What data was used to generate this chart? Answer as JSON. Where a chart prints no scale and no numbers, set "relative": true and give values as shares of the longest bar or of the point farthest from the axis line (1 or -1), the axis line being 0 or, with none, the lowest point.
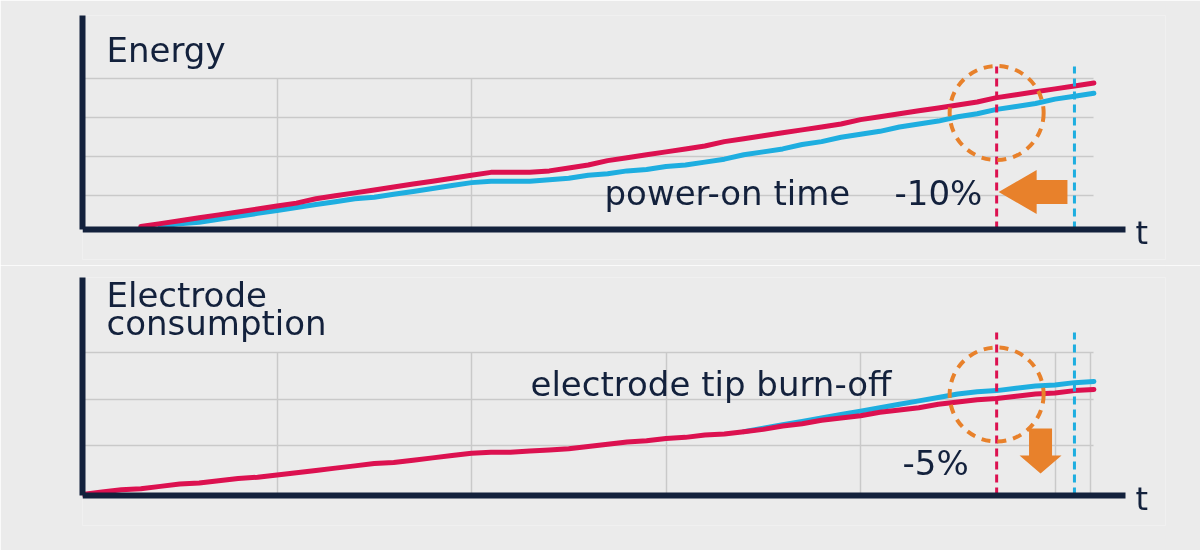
{
  "chart_data": [
    {
      "type": "line",
      "relative": true,
      "ylabel": "Energy",
      "xlabel": "t",
      "grid": true,
      "categories": [
        null,
        null,
        null,
        null,
        null,
        null,
        null,
        null,
        null,
        null,
        null,
        null,
        null,
        null,
        null,
        null,
        null,
        null,
        null,
        null,
        null,
        null,
        null,
        null,
        null,
        null,
        null,
        null,
        null,
        null,
        null,
        null,
        null,
        null,
        null,
        null,
        null,
        null,
        null,
        null,
        null,
        null,
        null,
        null,
        null,
        null,
        null,
        null,
        null,
        null,
        null,
        null,
        null
      ],
      "series": [
        {
          "color": "#1eaee0",
          "values": [
            null,
            null,
            null,
            null,
            0.02,
            0.04,
            0.05,
            0.07,
            0.09,
            0.11,
            0.13,
            0.15,
            0.17,
            0.19,
            0.21,
            0.22,
            0.24,
            0.26,
            0.28,
            0.3,
            0.32,
            0.33,
            0.33,
            0.33,
            0.34,
            0.35,
            0.37,
            0.38,
            0.4,
            0.41,
            0.43,
            0.44,
            0.46,
            0.48,
            0.51,
            0.53,
            0.55,
            0.58,
            0.6,
            0.63,
            0.65,
            0.67,
            0.7,
            0.72,
            0.74,
            0.77,
            0.79,
            0.82,
            0.84,
            0.86,
            0.89,
            0.91,
            0.93
          ]
        },
        {
          "color": "#dc1150",
          "values": [
            null,
            null,
            null,
            0.02,
            0.04,
            0.06,
            0.08,
            0.1,
            0.12,
            0.14,
            0.16,
            0.18,
            0.21,
            0.23,
            0.25,
            0.27,
            0.29,
            0.31,
            0.33,
            0.35,
            0.37,
            0.39,
            0.39,
            0.39,
            0.4,
            0.42,
            0.44,
            0.47,
            0.49,
            0.51,
            0.53,
            0.55,
            0.57,
            0.6,
            0.62,
            0.64,
            0.66,
            0.68,
            0.7,
            0.72,
            0.75,
            0.77,
            0.79,
            0.81,
            0.83,
            0.85,
            0.87,
            0.9,
            0.92,
            0.94,
            0.96,
            0.98,
            1
          ]
        }
      ],
      "annotations": [
        "power-on time",
        "-10%"
      ]
    },
    {
      "type": "line",
      "relative": true,
      "ylabel": "Electrode consumption",
      "xlabel": "t",
      "grid": true,
      "categories": [
        null,
        null,
        null,
        null,
        null,
        null,
        null,
        null,
        null,
        null,
        null,
        null,
        null,
        null,
        null,
        null,
        null,
        null,
        null,
        null,
        null,
        null,
        null,
        null,
        null,
        null,
        null,
        null,
        null,
        null,
        null,
        null,
        null,
        null,
        null,
        null,
        null,
        null,
        null,
        null,
        null,
        null,
        null,
        null,
        null,
        null,
        null,
        null,
        null,
        null,
        null,
        null,
        null
      ],
      "series": [
        {
          "color": "#1eaee0",
          "values": [
            null,
            null,
            null,
            null,
            null,
            null,
            null,
            null,
            null,
            null,
            null,
            null,
            null,
            null,
            null,
            null,
            null,
            null,
            null,
            null,
            null,
            null,
            null,
            null,
            null,
            null,
            null,
            null,
            null,
            null,
            null,
            null,
            null,
            null,
            0.56,
            0.59,
            0.62,
            0.65,
            0.68,
            0.71,
            0.74,
            0.77,
            0.8,
            0.83,
            0.86,
            0.89,
            0.91,
            0.92,
            0.94,
            0.96,
            0.97,
            0.99,
            1
          ]
        },
        {
          "color": "#dc1150",
          "values": [
            0.01,
            0.03,
            0.05,
            0.06,
            0.08,
            0.1,
            0.11,
            0.13,
            0.15,
            0.16,
            0.18,
            0.2,
            0.22,
            0.24,
            0.26,
            0.28,
            0.29,
            0.31,
            0.33,
            0.35,
            0.37,
            0.38,
            0.38,
            0.39,
            0.4,
            0.41,
            0.43,
            0.45,
            0.47,
            0.48,
            0.5,
            0.51,
            0.53,
            0.54,
            0.56,
            0.58,
            0.61,
            0.63,
            0.66,
            0.68,
            0.7,
            0.73,
            0.75,
            0.77,
            0.8,
            0.82,
            0.84,
            0.85,
            0.87,
            0.89,
            0.9,
            0.92,
            0.93
          ]
        }
      ],
      "annotations": [
        "electrode tip burn-off",
        "-5%"
      ]
    }
  ]
}
